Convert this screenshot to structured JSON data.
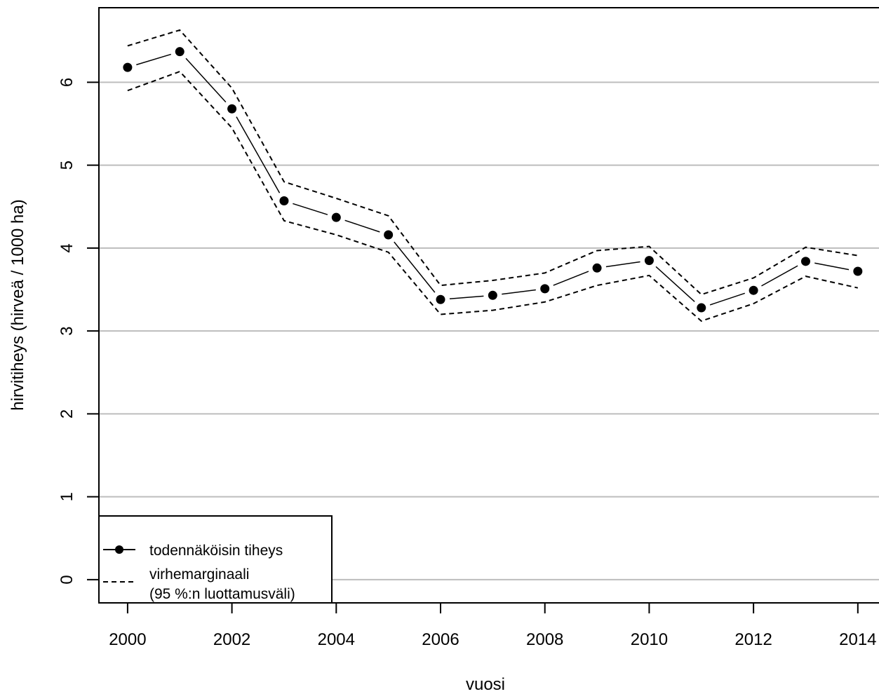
{
  "chart_data": {
    "type": "line",
    "title": "",
    "xlabel": "vuosi",
    "ylabel": "hirvitiheys (hirveä / 1000 ha)",
    "xlim": [
      1999.45,
      2014.5
    ],
    "ylim": [
      -0.28,
      6.9
    ],
    "x_ticks": [
      2000,
      2002,
      2004,
      2006,
      2008,
      2010,
      2012,
      2014
    ],
    "x_tick_labels": [
      "2000",
      "2002",
      "2004",
      "2006",
      "2008",
      "2010",
      "2012",
      "2014"
    ],
    "y_ticks": [
      0,
      1,
      2,
      3,
      4,
      5,
      6
    ],
    "y_tick_labels": [
      "0",
      "1",
      "2",
      "3",
      "4",
      "5",
      "6"
    ],
    "grid": "horizontal",
    "legend_position": "bottom-left",
    "x": [
      2000,
      2001,
      2002,
      2003,
      2004,
      2005,
      2006,
      2007,
      2008,
      2009,
      2010,
      2011,
      2012,
      2013,
      2014
    ],
    "series": [
      {
        "name": "todennäköisin tiheys",
        "style": "solid-with-points",
        "values": [
          6.18,
          6.37,
          5.68,
          4.57,
          4.37,
          4.16,
          3.38,
          3.43,
          3.51,
          3.76,
          3.85,
          3.28,
          3.49,
          3.84,
          3.72
        ]
      },
      {
        "name": "virhemarginaali (95 %:n luottamusväli)",
        "style": "dashed-band",
        "upper": [
          6.44,
          6.63,
          5.93,
          4.8,
          4.6,
          4.39,
          3.55,
          3.61,
          3.7,
          3.97,
          4.02,
          3.44,
          3.64,
          4.01,
          3.91
        ],
        "lower": [
          5.9,
          6.13,
          5.45,
          4.33,
          4.16,
          3.95,
          3.2,
          3.25,
          3.35,
          3.55,
          3.67,
          3.12,
          3.33,
          3.66,
          3.52
        ]
      }
    ],
    "legend": {
      "solid_label": "todennäköisin tiheys",
      "dashed_label_line1": "virhemarginaali",
      "dashed_label_line2": "(95 %:n luottamusväli)"
    }
  }
}
